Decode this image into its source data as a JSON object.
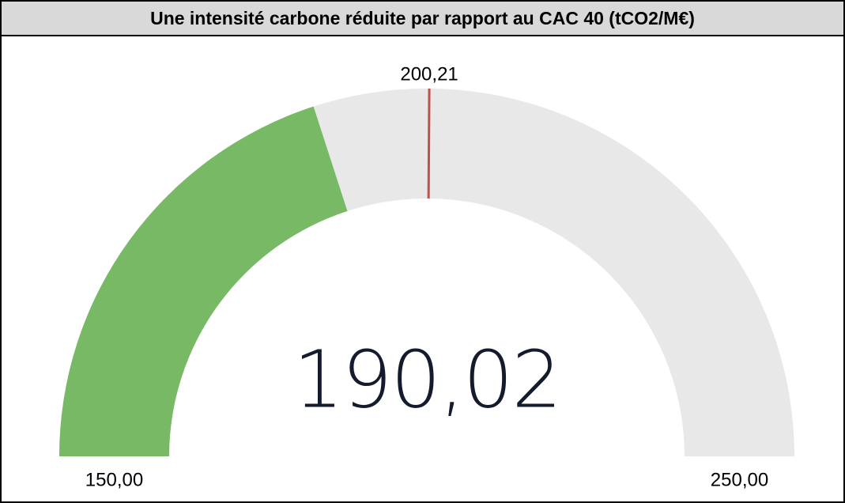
{
  "chart_data": {
    "type": "gauge",
    "title": "Une intensité carbone réduite par rapport au CAC 40 (tCO2/M€)",
    "values": [
      190.02
    ],
    "value_labels": [
      "190,02"
    ],
    "color": "#77b964",
    "track_color": "#e8e8e8",
    "ylim": [
      150,
      250
    ],
    "yticks": [
      {
        "value": 150,
        "label": "150,00"
      },
      {
        "value": 250,
        "label": "250,00"
      }
    ],
    "target": {
      "value": 200.21,
      "label": "200,21",
      "color": "#c0504d"
    }
  }
}
